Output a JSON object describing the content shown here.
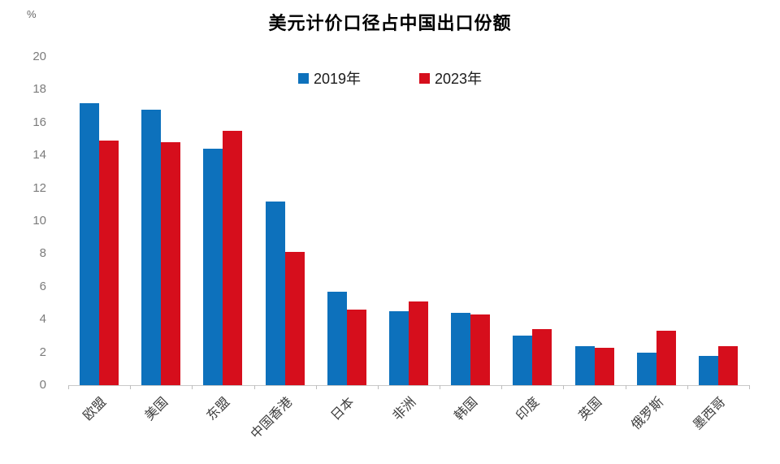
{
  "header": {
    "title": "美元计价口径占中国出口份额",
    "unit_label": "%"
  },
  "chart_data": {
    "type": "bar",
    "title": "美元计价口径占中国出口份额",
    "xlabel": "",
    "ylabel": "%",
    "categories": [
      "欧盟",
      "美国",
      "东盟",
      "中国香港",
      "日本",
      "非洲",
      "韩国",
      "印度",
      "英国",
      "俄罗斯",
      "墨西哥"
    ],
    "series": [
      {
        "name": "2019年",
        "color": "#0D71BC",
        "values": [
          17.2,
          16.8,
          14.4,
          11.2,
          5.7,
          4.5,
          4.4,
          3.0,
          2.4,
          2.0,
          1.8
        ]
      },
      {
        "name": "2023年",
        "color": "#D60E1C",
        "values": [
          14.9,
          14.8,
          15.5,
          8.1,
          4.6,
          5.1,
          4.3,
          3.4,
          2.3,
          3.3,
          2.4
        ]
      }
    ],
    "ylim": [
      0,
      20
    ],
    "ytick_step": 2,
    "yticks": [
      0,
      2,
      4,
      6,
      8,
      10,
      12,
      14,
      16,
      18,
      20
    ],
    "grid": false,
    "legend_position": "top-center",
    "x_label_rotation_deg": -45
  }
}
